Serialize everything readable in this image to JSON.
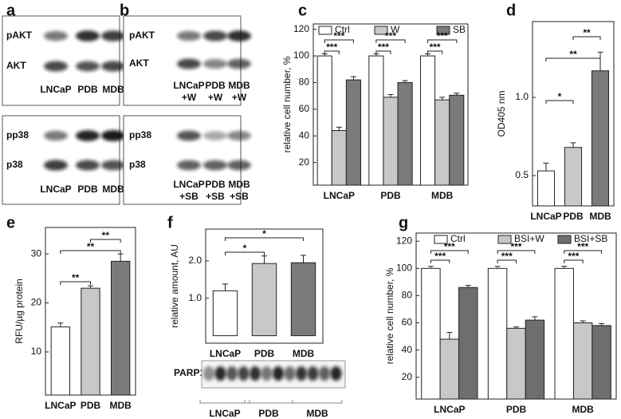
{
  "blots": [
    {
      "panel": "a",
      "groups": [
        {
          "rows": [
            "pAKT",
            "AKT"
          ],
          "lanes": [
            [
              "LNCaP"
            ],
            [
              "PDB"
            ],
            [
              "MDB"
            ]
          ]
        },
        {
          "rows": [
            "pp38",
            "p38"
          ],
          "lanes": [
            [
              "LNCaP"
            ],
            [
              "PDB"
            ],
            [
              "MDB"
            ]
          ]
        }
      ]
    },
    {
      "panel": "b",
      "groups": [
        {
          "rows": [
            "pAKT",
            "AKT"
          ],
          "lanes": [
            [
              "LNCaP",
              "+W"
            ],
            [
              "PDB",
              "+W"
            ],
            [
              "MDB",
              "+W"
            ]
          ]
        },
        {
          "rows": [
            "pp38",
            "p38"
          ],
          "lanes": [
            [
              "LNCaP",
              "+SB"
            ],
            [
              "PDB",
              "+SB"
            ],
            [
              "MDB",
              "+SB"
            ]
          ]
        }
      ]
    },
    {
      "panel": "f",
      "groups": [
        {
          "rows": [
            "PARP1"
          ],
          "lanes": [
            [
              "LNCaP"
            ],
            [
              "PDB"
            ],
            [
              "MDB"
            ]
          ]
        }
      ]
    }
  ],
  "chart_data": [
    {
      "type": "bar",
      "panel": "c",
      "y_label": "relative cell number, %",
      "categories": [
        "LNCaP",
        "PDB",
        "MDB"
      ],
      "series": [
        {
          "name": "Ctrl",
          "color": "#ffffff",
          "values": [
            100,
            100,
            100
          ],
          "errors": [
            1.5,
            1.5,
            1.5
          ]
        },
        {
          "name": "W",
          "color": "#c8c8c8",
          "values": [
            44,
            69,
            67
          ],
          "errors": [
            2.5,
            2,
            2
          ]
        },
        {
          "name": "SB",
          "color": "#7a7a7a",
          "values": [
            82,
            80,
            70.5
          ],
          "errors": [
            2.5,
            1.5,
            1.5
          ]
        }
      ],
      "ylim": [
        3,
        124
      ],
      "yticks": [
        20,
        40,
        60,
        80,
        100,
        120
      ],
      "annotations": [
        "***",
        "***",
        "***",
        "***",
        "***",
        "***"
      ]
    },
    {
      "type": "bar",
      "panel": "d",
      "y_label": "OD405 nm",
      "categories": [
        "LNCaP",
        "PDB",
        "MDB"
      ],
      "series": [
        {
          "colors": [
            "#ffffff",
            "#c8c8c8",
            "#7a7a7a"
          ],
          "values": [
            0.53,
            0.68,
            1.17
          ],
          "errors": [
            0.05,
            0.03,
            0.12
          ]
        }
      ],
      "ylim": [
        0.306,
        1.485
      ],
      "yticks": [
        0.5,
        {
          "value": 1,
          "label": "1.0"
        }
      ],
      "annotations": [
        "*",
        "**",
        "**"
      ]
    },
    {
      "type": "bar",
      "panel": "e",
      "y_label": "RFU/µg protein",
      "categories": [
        "LNCaP",
        "PDB",
        "MDB"
      ],
      "series": [
        {
          "colors": [
            "#ffffff",
            "#c8c8c8",
            "#7a7a7a"
          ],
          "values": [
            15.1,
            23,
            28.5
          ],
          "errors": [
            0.8,
            0.5,
            1.5
          ]
        }
      ],
      "ylim": [
        1.2,
        35.4
      ],
      "yticks": [
        10,
        20,
        30
      ],
      "annotations": [
        "**",
        "**",
        "**"
      ]
    },
    {
      "type": "bar",
      "panel": "f",
      "y_label": "relative amount, AU",
      "categories": [
        "LNCaP",
        "PDB",
        "MDB"
      ],
      "series": [
        {
          "colors": [
            "#ffffff",
            "#c8c8c8",
            "#7a7a7a"
          ],
          "values": [
            1.2,
            1.93,
            1.95
          ],
          "errors": [
            0.18,
            0.2,
            0.2
          ]
        }
      ],
      "ylim": [
        -0.2,
        2.85
      ],
      "yticks": [
        {
          "value": 1,
          "label": "1.0"
        },
        {
          "value": 2,
          "label": "2.0"
        }
      ],
      "annotations": [
        "*",
        "*"
      ]
    },
    {
      "type": "bar",
      "panel": "g",
      "y_label": "relative cell number, %",
      "categories": [
        "LNCaP",
        "PDB",
        "MDB"
      ],
      "series": [
        {
          "name": "Ctrl",
          "color": "#ffffff",
          "values": [
            100,
            100,
            100
          ],
          "errors": [
            1.5,
            1.5,
            1.5
          ]
        },
        {
          "name": "BSI+W",
          "color": "#c8c8c8",
          "values": [
            48,
            56,
            60
          ],
          "errors": [
            5,
            1,
            1.5
          ]
        },
        {
          "name": "BSI+SB",
          "color": "#6e6e6e",
          "values": [
            86,
            62,
            58
          ],
          "errors": [
            1.5,
            2.5,
            1.5
          ]
        }
      ],
      "ylim": [
        4,
        126
      ],
      "yticks": [
        20,
        40,
        60,
        80,
        100,
        120
      ],
      "annotations": [
        "***",
        "***",
        "***",
        "***",
        "***",
        "***"
      ]
    }
  ]
}
